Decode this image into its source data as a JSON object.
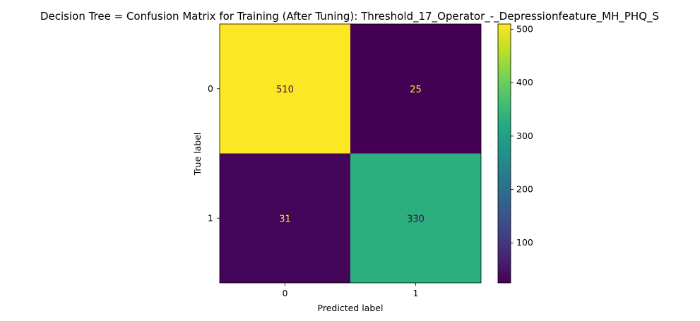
{
  "chart_data": {
    "type": "heatmap",
    "title": "Decision Tree = Confusion Matrix for Training (After Tuning): Threshold_17_Operator_-_Depressionfeature_MH_PHQ_S",
    "xlabel": "Predicted label",
    "ylabel": "True label",
    "x_categories": [
      "0",
      "1"
    ],
    "y_categories": [
      "0",
      "1"
    ],
    "values": [
      [
        510,
        25
      ],
      [
        31,
        330
      ]
    ],
    "colormap": "viridis",
    "colorbar": {
      "ticks": [
        "100",
        "200",
        "300",
        "400",
        "500"
      ],
      "range": [
        25,
        510
      ]
    },
    "colors": {
      "high": "#fde725",
      "low": "#440154",
      "mid_teal": "#2fb47c",
      "text_on_dark": "#fde725",
      "text_on_light": "#440154"
    }
  }
}
